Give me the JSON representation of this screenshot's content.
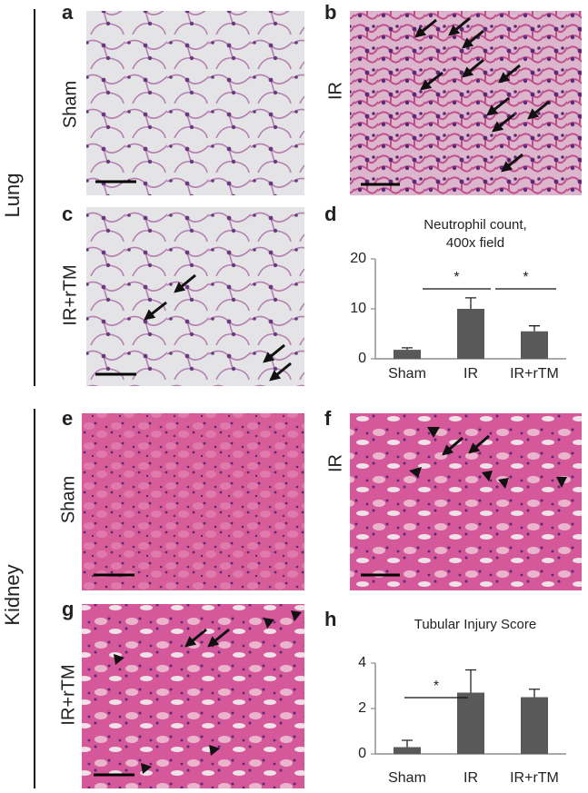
{
  "sections": [
    {
      "label": "Lung"
    },
    {
      "label": "Kidney"
    }
  ],
  "panels": [
    {
      "letter": "a",
      "condition": "Sham"
    },
    {
      "letter": "b",
      "condition": "IR"
    },
    {
      "letter": "c",
      "condition": "IR+rTM"
    },
    {
      "letter": "d"
    },
    {
      "letter": "e",
      "condition": "Sham"
    },
    {
      "letter": "f",
      "condition": "IR"
    },
    {
      "letter": "g",
      "condition": "IR+rTM"
    },
    {
      "letter": "h"
    }
  ],
  "chart_data": [
    {
      "type": "bar",
      "title": [
        "Neutrophil count,",
        "400x field"
      ],
      "categories": [
        "Sham",
        "IR",
        "IR+rTM"
      ],
      "values": [
        1.8,
        10,
        5.5
      ],
      "errors": [
        0.4,
        2.2,
        1.1
      ],
      "color": "#595959",
      "ylim": [
        0,
        20
      ],
      "yticks": [
        0,
        10,
        20
      ],
      "annotations": [
        "*",
        "*"
      ]
    },
    {
      "type": "bar",
      "title": [
        "Tubular Injury Score"
      ],
      "categories": [
        "Sham",
        "IR",
        "IR+rTM"
      ],
      "values": [
        0.3,
        2.7,
        2.5
      ],
      "errors": [
        0.3,
        1.0,
        0.35
      ],
      "color": "#595959",
      "ylim": [
        0,
        4
      ],
      "yticks": [
        0,
        2,
        4
      ],
      "annotations": [
        "*"
      ]
    }
  ]
}
